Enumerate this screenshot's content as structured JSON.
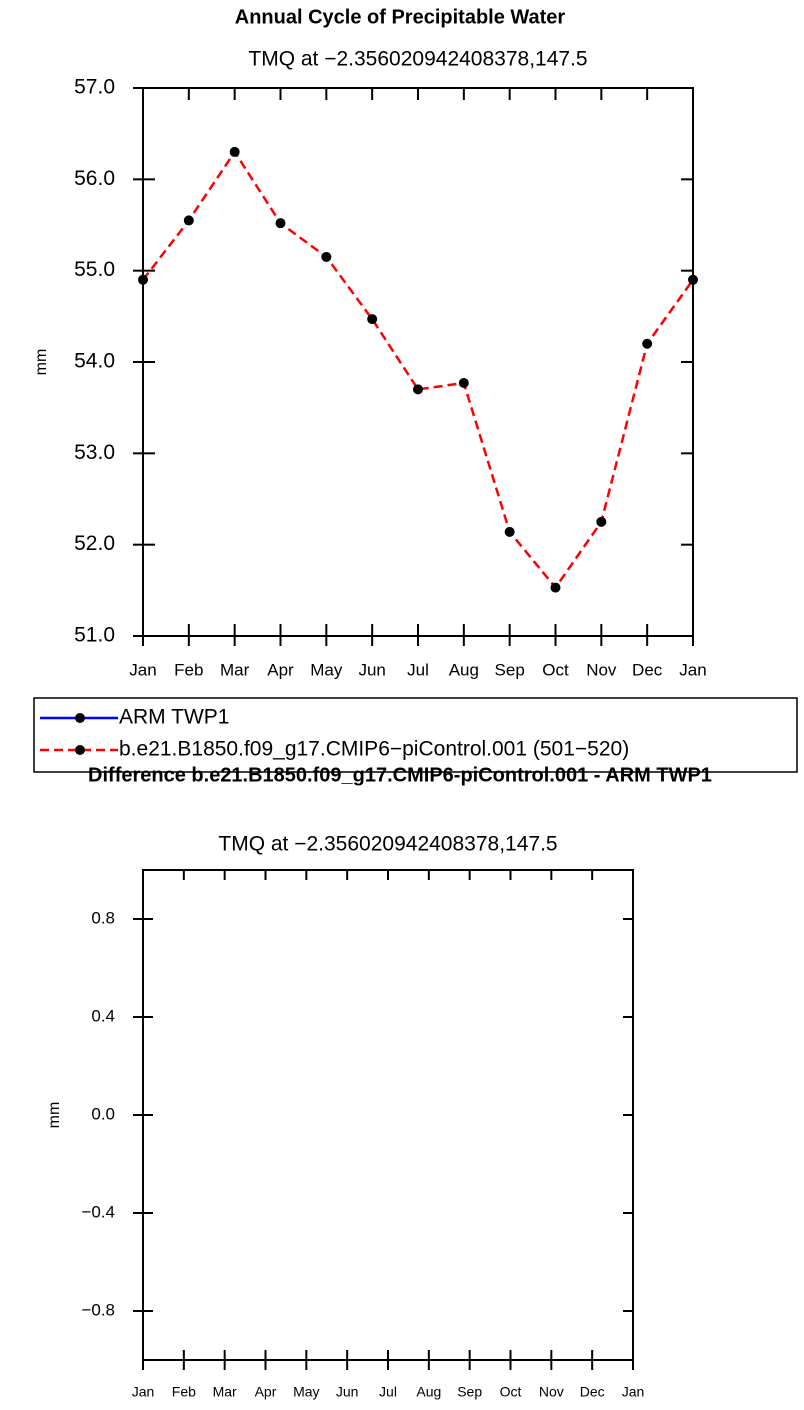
{
  "chart_data": [
    {
      "type": "line",
      "title": "Annual Cycle of Precipitable Water",
      "subtitle": "TMQ at −2.356020942408378,147.5",
      "ylabel": "mm",
      "categories": [
        "Jan",
        "Feb",
        "Mar",
        "Apr",
        "May",
        "Jun",
        "Jul",
        "Aug",
        "Sep",
        "Oct",
        "Nov",
        "Dec",
        "Jan"
      ],
      "series": [
        {
          "name": "ARM TWP1",
          "color": "#0000ff",
          "dashed": false,
          "values": [
            null,
            null,
            null,
            null,
            null,
            null,
            null,
            null,
            null,
            null,
            null,
            null,
            null
          ]
        },
        {
          "name": "b.e21.B1850.f09_g17.CMIP6−piControl.001 (501−520)",
          "color": "#ff0000",
          "dashed": true,
          "values": [
            54.9,
            55.55,
            56.3,
            55.52,
            55.15,
            54.47,
            53.7,
            53.77,
            52.14,
            51.53,
            52.25,
            54.2,
            54.9
          ]
        }
      ],
      "ylim": [
        51,
        57
      ],
      "yticks": [
        {
          "value": 51,
          "label": "51.0"
        },
        {
          "value": 52,
          "label": "52.0"
        },
        {
          "value": 53,
          "label": "53.0"
        },
        {
          "value": 54,
          "label": "54.0"
        },
        {
          "value": 55,
          "label": "55.0"
        },
        {
          "value": 56,
          "label": "56.0"
        },
        {
          "value": 57,
          "label": "57.0"
        }
      ],
      "legend": "bottom"
    },
    {
      "type": "line",
      "title": "Difference b.e21.B1850.f09_g17.CMIP6-piControl.001 - ARM TWP1",
      "subtitle": "TMQ at −2.356020942408378,147.5",
      "ylabel": "mm",
      "categories": [
        "Jan",
        "Feb",
        "Mar",
        "Apr",
        "May",
        "Jun",
        "Jul",
        "Aug",
        "Sep",
        "Oct",
        "Nov",
        "Dec",
        "Jan"
      ],
      "ylim": [
        -1,
        1
      ],
      "yticks": [
        {
          "value": -0.8,
          "label": "−0.8"
        },
        {
          "value": -0.4,
          "label": "−0.4"
        },
        {
          "value": 0,
          "label": "0.0"
        },
        0.4,
        0.8
      ]
    }
  ]
}
